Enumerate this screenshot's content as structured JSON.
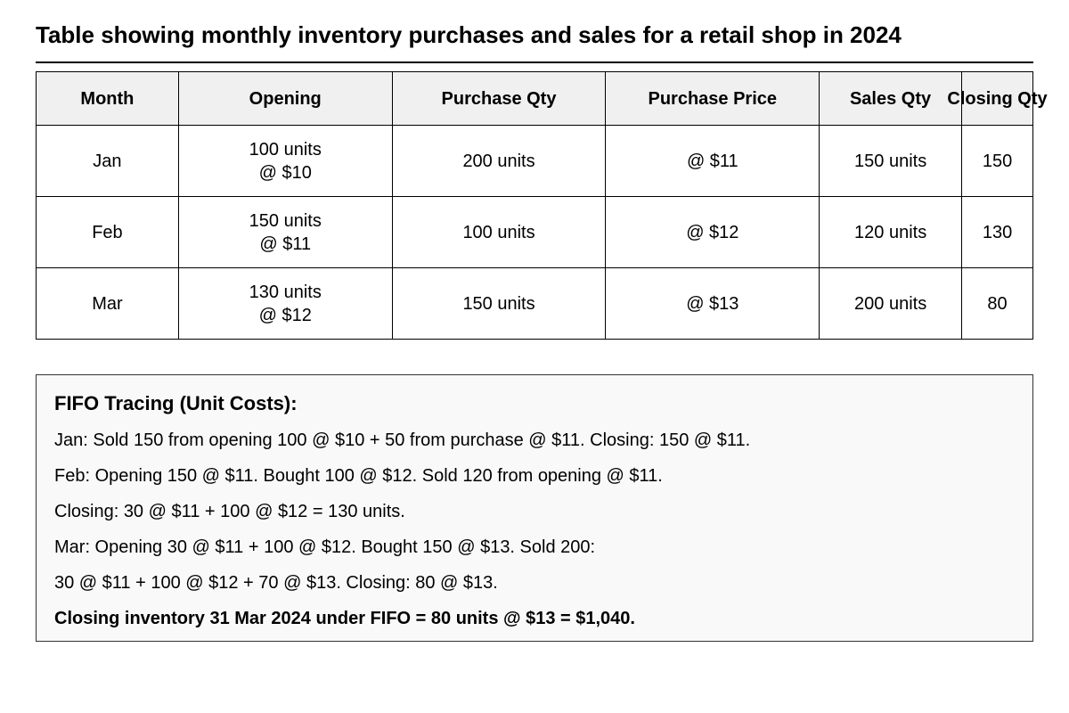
{
  "title": "Table showing monthly inventory purchases and sales for a retail shop in 2024",
  "table": {
    "columns": [
      "Month",
      "Opening",
      "Purchase Qty",
      "Purchase Price",
      "Sales Qty",
      "Closing Qty"
    ],
    "rows": [
      [
        "Jan",
        [
          "100 units",
          "@ $10"
        ],
        "200 units",
        "@ $11",
        "150 units",
        "150"
      ],
      [
        "Feb",
        [
          "150 units",
          "@ $11"
        ],
        "100 units",
        "@ $12",
        "120 units",
        "130"
      ],
      [
        "Mar",
        [
          "130 units",
          "@ $12"
        ],
        "150 units",
        "@ $13",
        "200 units",
        "80"
      ]
    ]
  },
  "notes": {
    "heading": "FIFO Tracing (Unit Costs):",
    "lines": [
      "Jan: Sold 150 from opening 100 @ $10 + 50 from purchase @ $11. Closing: 150 @ $11.",
      "Feb: Opening 150 @ $11. Bought 100 @ $12. Sold 120 from opening @ $11.",
      "Closing: 30 @ $11 + 100 @ $12 = 130 units.",
      "Mar: Opening 30 @ $11 + 100 @ $12. Bought 150 @ $13. Sold 200:",
      "30 @ $11 + 100 @ $12 + 70 @ $13. Closing: 80 @ $13."
    ],
    "conclusion": "Closing inventory 31 Mar 2024 under FIFO = 80 units @ $13 = $1,040."
  }
}
